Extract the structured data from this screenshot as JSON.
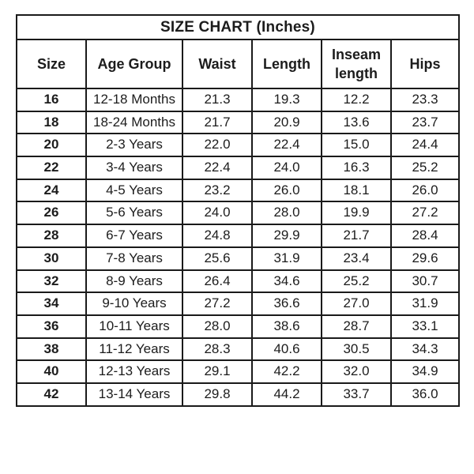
{
  "table": {
    "title": "SIZE CHART (Inches)",
    "unit": "Inches",
    "columns": [
      "Size",
      "Age Group",
      "Waist",
      "Length",
      "Inseam length",
      "Hips"
    ],
    "column_keys": [
      "size",
      "age-group",
      "waist",
      "length",
      "inseam-length",
      "hips"
    ],
    "rows": [
      [
        "16",
        "12-18 Months",
        "21.3",
        "19.3",
        "12.2",
        "23.3"
      ],
      [
        "18",
        "18-24 Months",
        "21.7",
        "20.9",
        "13.6",
        "23.7"
      ],
      [
        "20",
        "2-3 Years",
        "22.0",
        "22.4",
        "15.0",
        "24.4"
      ],
      [
        "22",
        "3-4 Years",
        "22.4",
        "24.0",
        "16.3",
        "25.2"
      ],
      [
        "24",
        "4-5 Years",
        "23.2",
        "26.0",
        "18.1",
        "26.0"
      ],
      [
        "26",
        "5-6 Years",
        "24.0",
        "28.0",
        "19.9",
        "27.2"
      ],
      [
        "28",
        "6-7 Years",
        "24.8",
        "29.9",
        "21.7",
        "28.4"
      ],
      [
        "30",
        "7-8 Years",
        "25.6",
        "31.9",
        "23.4",
        "29.6"
      ],
      [
        "32",
        "8-9 Years",
        "26.4",
        "34.6",
        "25.2",
        "30.7"
      ],
      [
        "34",
        "9-10 Years",
        "27.2",
        "36.6",
        "27.0",
        "31.9"
      ],
      [
        "36",
        "10-11 Years",
        "28.0",
        "38.6",
        "28.7",
        "33.1"
      ],
      [
        "38",
        "11-12 Years",
        "28.3",
        "40.6",
        "30.5",
        "34.3"
      ],
      [
        "40",
        "12-13 Years",
        "29.1",
        "42.2",
        "32.0",
        "34.9"
      ],
      [
        "42",
        "13-14 Years",
        "29.8",
        "44.2",
        "33.7",
        "36.0"
      ]
    ],
    "colors": {
      "border": "#1a1a1a",
      "text": "#1c1c1c",
      "background": "#ffffff"
    }
  }
}
